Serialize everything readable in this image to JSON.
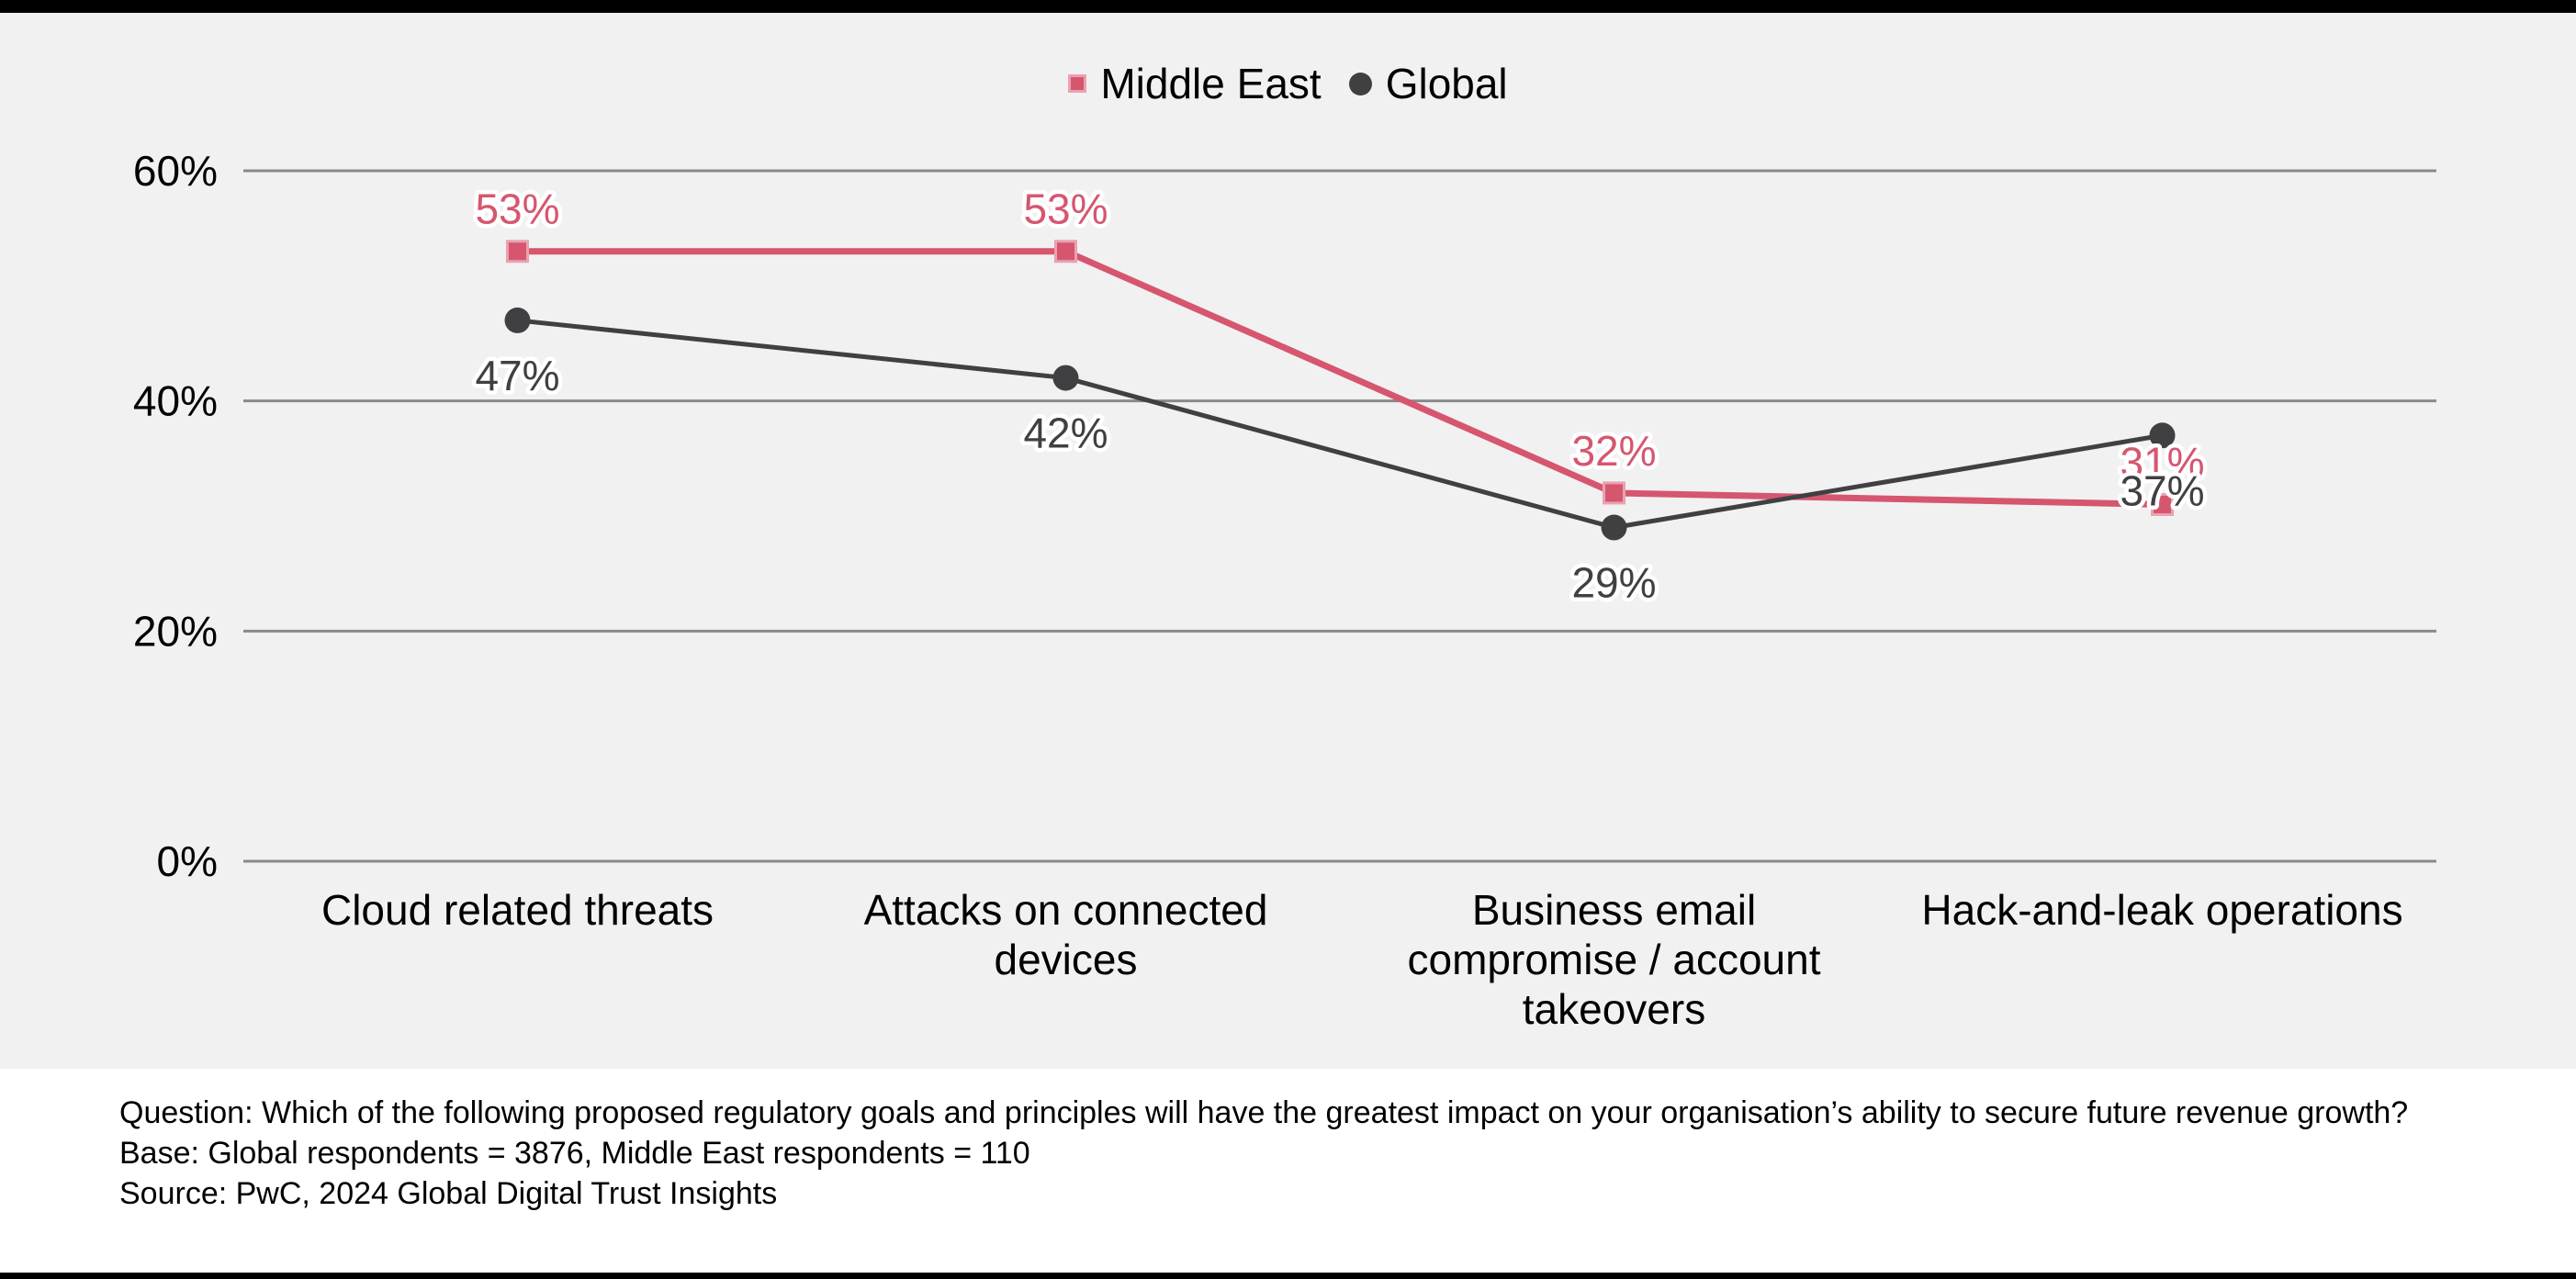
{
  "page": {
    "chart_background": "#f1f1f2",
    "footer_background": "#ffffff",
    "border_bar_color": "#000000"
  },
  "chart_data": {
    "type": "line",
    "title": "",
    "categories": [
      "Cloud related threats",
      "Attacks on connected devices",
      "Business email compromise / account takeovers",
      "Hack-and-leak operations"
    ],
    "category_lines": [
      [
        "Cloud related threats"
      ],
      [
        "Attacks on connected",
        "devices"
      ],
      [
        "Business email",
        "compromise / account",
        "takeovers"
      ],
      [
        "Hack-and-leak operations"
      ]
    ],
    "series": [
      {
        "name": "Middle East",
        "marker": "square",
        "color": "#d6566f",
        "marker_border": "#e9a2b0",
        "line_width": 7,
        "label_offset": -46,
        "values": [
          53,
          53,
          32,
          31
        ],
        "labels": [
          "53%",
          "53%",
          "32%",
          "31%"
        ]
      },
      {
        "name": "Global",
        "marker": "circle",
        "color": "#404042",
        "marker_border": "#404042",
        "line_width": 5,
        "label_offset": 60,
        "values": [
          47,
          42,
          29,
          37
        ],
        "labels": [
          "47%",
          "42%",
          "29%",
          "37%"
        ]
      }
    ],
    "yticks": [
      {
        "value": 0,
        "label": "0%"
      },
      {
        "value": 20,
        "label": "20%"
      },
      {
        "value": 40,
        "label": "40%"
      },
      {
        "value": 60,
        "label": "60%"
      }
    ],
    "ylim": [
      0,
      60
    ],
    "xlabel": "",
    "ylabel": "",
    "grid": "horizontal",
    "gridline_color": "#8a8a8a",
    "legend_position": "top-center",
    "axis_text_color": "#000000",
    "label_halo_color": "#ffffff"
  },
  "footer": {
    "question": "Question: Which of the following proposed regulatory goals and principles will have the greatest impact on your organisation’s ability to secure future revenue growth?",
    "base": "Base: Global respondents = 3876, Middle East respondents = 110",
    "source": "Source: PwC, 2024 Global Digital Trust Insights"
  }
}
